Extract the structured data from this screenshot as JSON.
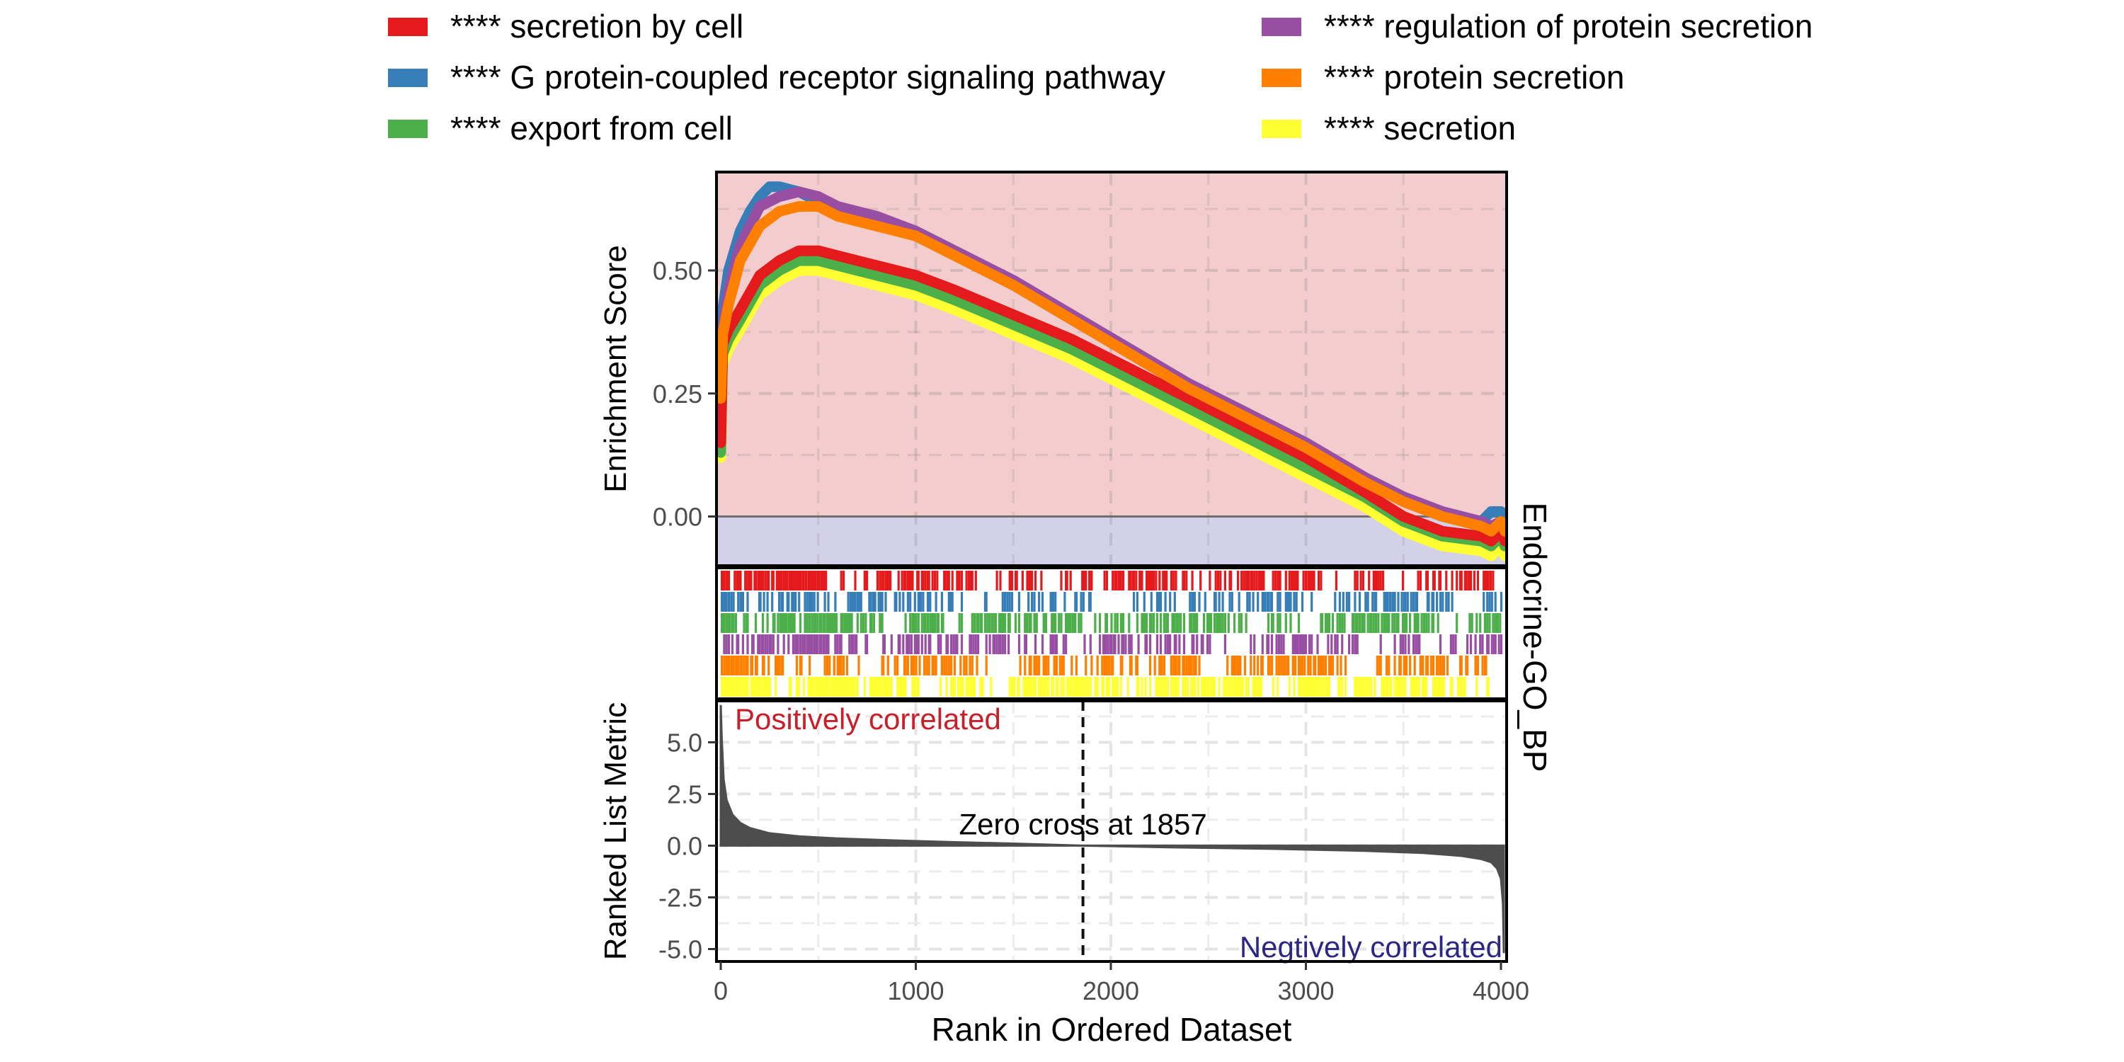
{
  "chart_data": {
    "type": "line",
    "facet_label": "Endocrine-GO_BP",
    "xlabel": "Rank in Ordered Dataset",
    "xlim": [
      0,
      4020
    ],
    "x_ticks": [
      0,
      1000,
      2000,
      3000,
      4000
    ],
    "x_tick_labels": [
      "0",
      "1000",
      "2000",
      "3000",
      "4000"
    ],
    "legend_position": "top",
    "grid": true,
    "colors": {
      "positive_region": "#F3CCCD",
      "negative_region": "#D3D0E9",
      "ranked_fill": "#4D4D4D",
      "positive_text": "#C8202A",
      "negative_text": "#2E2585",
      "grid": "#E3E3E3"
    },
    "series": [
      {
        "name": "**** secretion by cell",
        "color": "#E41A1C",
        "x": [
          0,
          10,
          40,
          100,
          200,
          300,
          400,
          500,
          600,
          700,
          800,
          1000,
          1200,
          1500,
          1800,
          2100,
          2400,
          2700,
          3000,
          3300,
          3500,
          3700,
          3900,
          3950,
          4000,
          4020
        ],
        "y": [
          0.15,
          0.35,
          0.38,
          0.42,
          0.49,
          0.52,
          0.54,
          0.54,
          0.53,
          0.52,
          0.51,
          0.49,
          0.46,
          0.41,
          0.36,
          0.3,
          0.24,
          0.18,
          0.12,
          0.05,
          0.0,
          -0.03,
          -0.04,
          -0.05,
          -0.03,
          -0.05
        ]
      },
      {
        "name": "**** G protein-coupled receptor signaling pathway",
        "color": "#377EB8",
        "x": [
          0,
          10,
          40,
          100,
          150,
          200,
          250,
          300,
          400,
          500,
          600,
          700,
          800,
          1000,
          1200,
          1500,
          1800,
          2100,
          2400,
          2700,
          3000,
          3300,
          3500,
          3700,
          3900,
          3950,
          4000,
          4020
        ],
        "y": [
          0.3,
          0.42,
          0.5,
          0.58,
          0.62,
          0.65,
          0.67,
          0.67,
          0.66,
          0.64,
          0.62,
          0.6,
          0.6,
          0.57,
          0.53,
          0.47,
          0.4,
          0.33,
          0.26,
          0.2,
          0.14,
          0.08,
          0.03,
          0.0,
          -0.01,
          0.01,
          0.01,
          -0.02
        ]
      },
      {
        "name": "**** export from cell",
        "color": "#4DAF4A",
        "x": [
          0,
          10,
          40,
          100,
          200,
          300,
          400,
          500,
          600,
          700,
          800,
          1000,
          1200,
          1500,
          1800,
          2100,
          2400,
          2700,
          3000,
          3300,
          3500,
          3700,
          3900,
          3950,
          4000,
          4020
        ],
        "y": [
          0.13,
          0.33,
          0.36,
          0.4,
          0.47,
          0.5,
          0.52,
          0.52,
          0.51,
          0.5,
          0.49,
          0.47,
          0.44,
          0.39,
          0.34,
          0.28,
          0.22,
          0.16,
          0.1,
          0.04,
          -0.01,
          -0.04,
          -0.05,
          -0.06,
          -0.04,
          -0.06
        ]
      },
      {
        "name": "**** regulation of protein secretion",
        "color": "#984EA3",
        "x": [
          0,
          10,
          40,
          100,
          200,
          300,
          400,
          500,
          600,
          700,
          800,
          1000,
          1200,
          1500,
          1800,
          2100,
          2400,
          2700,
          3000,
          3300,
          3500,
          3700,
          3900,
          3950,
          4000,
          4020
        ],
        "y": [
          0.25,
          0.38,
          0.46,
          0.55,
          0.63,
          0.65,
          0.66,
          0.65,
          0.63,
          0.62,
          0.61,
          0.58,
          0.54,
          0.48,
          0.41,
          0.34,
          0.27,
          0.21,
          0.15,
          0.08,
          0.04,
          0.01,
          -0.01,
          -0.02,
          -0.01,
          -0.02
        ]
      },
      {
        "name": "**** protein secretion",
        "color": "#FF7F00",
        "x": [
          0,
          10,
          40,
          100,
          200,
          300,
          400,
          500,
          600,
          700,
          800,
          1000,
          1200,
          1500,
          1800,
          2100,
          2400,
          2700,
          3000,
          3300,
          3500,
          3700,
          3900,
          3950,
          4000,
          4020
        ],
        "y": [
          0.24,
          0.37,
          0.43,
          0.52,
          0.59,
          0.62,
          0.63,
          0.63,
          0.61,
          0.6,
          0.59,
          0.57,
          0.53,
          0.47,
          0.4,
          0.33,
          0.26,
          0.2,
          0.14,
          0.07,
          0.03,
          0.0,
          -0.02,
          -0.03,
          -0.01,
          -0.03
        ]
      },
      {
        "name": "**** secretion",
        "color": "#FFFF33",
        "x": [
          0,
          10,
          40,
          100,
          200,
          300,
          400,
          500,
          600,
          700,
          800,
          1000,
          1200,
          1500,
          1800,
          2100,
          2400,
          2700,
          3000,
          3300,
          3500,
          3700,
          3900,
          3950,
          4000,
          4020
        ],
        "y": [
          0.12,
          0.31,
          0.34,
          0.38,
          0.45,
          0.48,
          0.5,
          0.5,
          0.49,
          0.48,
          0.47,
          0.45,
          0.42,
          0.37,
          0.32,
          0.26,
          0.2,
          0.14,
          0.08,
          0.02,
          -0.03,
          -0.06,
          -0.07,
          -0.08,
          -0.06,
          -0.08
        ]
      }
    ],
    "enrichment_panel": {
      "ylabel": "Enrichment Score",
      "ylim": [
        -0.1,
        0.7
      ],
      "y_ticks": [
        0.0,
        0.25,
        0.5
      ],
      "y_tick_labels": [
        "0.00",
        "0.25",
        "0.50"
      ]
    },
    "hits_panel": {
      "hit_density_by_series": [
        0.42,
        0.3,
        0.45,
        0.34,
        0.34,
        0.55
      ]
    },
    "ranked_panel": {
      "ylabel": "Ranked List Metric",
      "ylim": [
        -5.6,
        7.0
      ],
      "y_ticks": [
        5.0,
        2.5,
        0.0,
        -2.5,
        -5.0
      ],
      "y_tick_labels": [
        "5.0",
        "2.5",
        "0.0",
        "-2.5",
        "-5.0"
      ],
      "x": [
        0,
        5,
        15,
        30,
        60,
        100,
        150,
        250,
        400,
        600,
        900,
        1200,
        1500,
        1857,
        2300,
        2800,
        3300,
        3600,
        3800,
        3900,
        3950,
        3980,
        4000,
        4010,
        4015
      ],
      "y": [
        6.8,
        5.2,
        3.2,
        2.2,
        1.5,
        1.1,
        0.85,
        0.6,
        0.45,
        0.35,
        0.25,
        0.17,
        0.1,
        0.0,
        -0.08,
        -0.15,
        -0.25,
        -0.35,
        -0.5,
        -0.65,
        -0.8,
        -1.1,
        -1.6,
        -2.8,
        -5.2
      ],
      "zero_cross_rank": 1857,
      "zero_cross_label": "Zero cross at 1857",
      "positive_label": "Positively correlated",
      "negative_label": "Negtively correlated"
    }
  }
}
